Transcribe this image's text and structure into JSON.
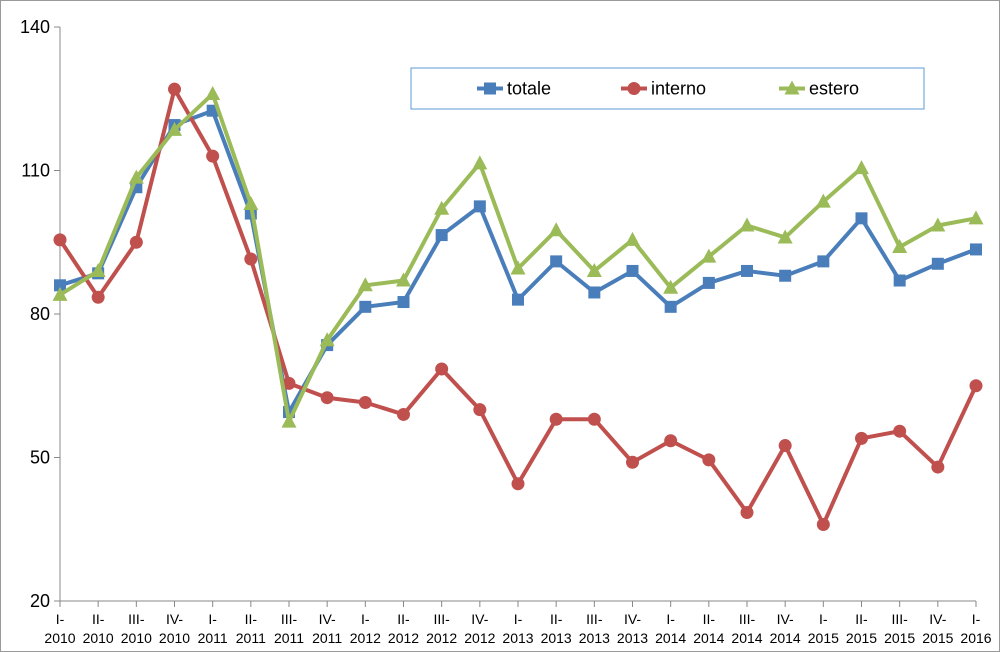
{
  "chart_data": {
    "type": "line",
    "title": "",
    "xlabel": "",
    "ylabel": "",
    "ylim": [
      20,
      140
    ],
    "yticks": [
      20,
      50,
      80,
      110,
      140
    ],
    "grid": false,
    "legend_position": "top-right",
    "categories": [
      [
        "I-",
        "2010"
      ],
      [
        "II-",
        "2010"
      ],
      [
        "III-",
        "2010"
      ],
      [
        "IV-",
        "2010"
      ],
      [
        "I-",
        "2011"
      ],
      [
        "II-",
        "2011"
      ],
      [
        "III-",
        "2011"
      ],
      [
        "IV-",
        "2011"
      ],
      [
        "I-",
        "2012"
      ],
      [
        "II-",
        "2012"
      ],
      [
        "III-",
        "2012"
      ],
      [
        "IV-",
        "2012"
      ],
      [
        "I-",
        "2013"
      ],
      [
        "II-",
        "2013"
      ],
      [
        "III-",
        "2013"
      ],
      [
        "IV-",
        "2013"
      ],
      [
        "I-",
        "2014"
      ],
      [
        "II-",
        "2014"
      ],
      [
        "III-",
        "2014"
      ],
      [
        "IV-",
        "2014"
      ],
      [
        "I-",
        "2015"
      ],
      [
        "II-",
        "2015"
      ],
      [
        "III-",
        "2015"
      ],
      [
        "IV-",
        "2015"
      ],
      [
        "I-",
        "2016"
      ]
    ],
    "series": [
      {
        "name": "totale",
        "color": "#4a7ebb",
        "marker": "square",
        "values": [
          86,
          88.5,
          106.5,
          119.5,
          122.5,
          101,
          59.5,
          73.5,
          81.5,
          82.5,
          96.5,
          102.5,
          83,
          91,
          84.5,
          89,
          81.5,
          86.5,
          89,
          88,
          91,
          100,
          87,
          90.5,
          93.5
        ]
      },
      {
        "name": "interno",
        "color": "#c0504d",
        "marker": "circle",
        "values": [
          95.5,
          83.5,
          95,
          127,
          113,
          91.5,
          65.5,
          62.5,
          61.5,
          59,
          68.5,
          60,
          44.5,
          58,
          58,
          49,
          53.5,
          49.5,
          38.5,
          52.5,
          36,
          54,
          55.5,
          48,
          65
        ]
      },
      {
        "name": "estero",
        "color": "#9bbb59",
        "marker": "triangle",
        "values": [
          84,
          89,
          108.5,
          118.5,
          126,
          103,
          57.5,
          74.5,
          86,
          87,
          102,
          111.5,
          89.5,
          97.5,
          89,
          95.5,
          85.5,
          92,
          98.5,
          96,
          103.5,
          110.5,
          94,
          98.5,
          100
        ]
      }
    ]
  }
}
